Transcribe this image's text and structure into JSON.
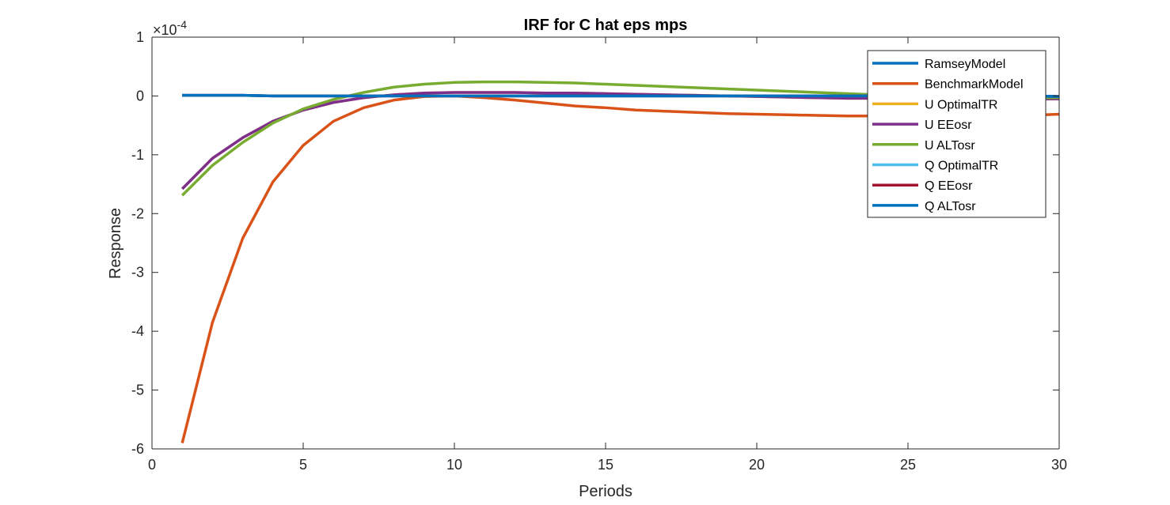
{
  "chart_data": {
    "type": "line",
    "title": "IRF for C hat eps mps",
    "xlabel": "Periods",
    "ylabel": "Response",
    "y_exponent_base": "×10",
    "y_exponent_power": "-4",
    "xlim": [
      0,
      30
    ],
    "ylim": [
      -6,
      1
    ],
    "xticks": [
      0,
      5,
      10,
      15,
      20,
      25,
      30
    ],
    "yticks": [
      1,
      0,
      -1,
      -2,
      -3,
      -4,
      -5,
      -6
    ],
    "legend_position": "top-right",
    "grid": false,
    "x": [
      1,
      2,
      3,
      4,
      5,
      6,
      7,
      8,
      9,
      10,
      11,
      12,
      13,
      14,
      15,
      16,
      17,
      18,
      19,
      20,
      21,
      22,
      23,
      24,
      25,
      26,
      27,
      28,
      29,
      30
    ],
    "series": [
      {
        "name": "RamseyModel",
        "color": "#0072BD",
        "values": [
          0.01,
          0.01,
          0.01,
          0.0,
          0.0,
          0.0,
          0.0,
          0.0,
          0.0,
          0.0,
          0.0,
          0.0,
          0.0,
          0.0,
          0.0,
          0.0,
          0.0,
          0.0,
          0.0,
          0.0,
          0.0,
          0.0,
          0.0,
          0.0,
          0.0,
          0.0,
          0.0,
          0.0,
          0.0,
          -0.01
        ]
      },
      {
        "name": "BenchmarkModel",
        "color": "#D95319",
        "values": [
          -5.9,
          -3.85,
          -2.42,
          -1.46,
          -0.84,
          -0.43,
          -0.2,
          -0.07,
          -0.01,
          0.0,
          -0.03,
          -0.07,
          -0.12,
          -0.17,
          -0.2,
          -0.24,
          -0.26,
          -0.28,
          -0.3,
          -0.31,
          -0.32,
          -0.33,
          -0.34,
          -0.34,
          -0.34,
          -0.34,
          -0.34,
          -0.34,
          -0.33,
          -0.31
        ]
      },
      {
        "name": "U OptimalTR",
        "color": "#EDB120",
        "values": [
          -1.58,
          -1.06,
          -0.71,
          -0.43,
          -0.24,
          -0.11,
          -0.03,
          0.02,
          0.05,
          0.06,
          0.06,
          0.06,
          0.05,
          0.05,
          0.04,
          0.03,
          0.02,
          0.01,
          0.0,
          -0.01,
          -0.02,
          -0.03,
          -0.04,
          -0.04,
          -0.05,
          -0.05,
          -0.05,
          -0.05,
          -0.05,
          -0.05
        ]
      },
      {
        "name": "U EEosr",
        "color": "#7E2F8E",
        "values": [
          -1.58,
          -1.06,
          -0.71,
          -0.43,
          -0.24,
          -0.11,
          -0.03,
          0.02,
          0.05,
          0.06,
          0.06,
          0.06,
          0.05,
          0.05,
          0.04,
          0.03,
          0.02,
          0.01,
          0.0,
          -0.01,
          -0.02,
          -0.03,
          -0.04,
          -0.04,
          -0.05,
          -0.05,
          -0.05,
          -0.05,
          -0.05,
          -0.05
        ]
      },
      {
        "name": "U ALTosr",
        "color": "#77AC30",
        "values": [
          -1.69,
          -1.18,
          -0.79,
          -0.46,
          -0.22,
          -0.06,
          0.06,
          0.15,
          0.2,
          0.23,
          0.24,
          0.24,
          0.23,
          0.22,
          0.2,
          0.18,
          0.16,
          0.14,
          0.12,
          0.1,
          0.08,
          0.06,
          0.04,
          0.02,
          0.01,
          -0.01,
          -0.02,
          -0.03,
          -0.03,
          -0.03
        ]
      },
      {
        "name": "Q OptimalTR",
        "color": "#4DBEEE",
        "values": [
          0.01,
          0.01,
          0.01,
          0.0,
          0.0,
          0.0,
          0.0,
          0.0,
          0.0,
          0.0,
          0.0,
          0.0,
          0.0,
          0.0,
          0.0,
          0.0,
          0.0,
          0.0,
          0.0,
          0.0,
          0.0,
          0.0,
          0.0,
          0.0,
          0.0,
          0.0,
          0.0,
          0.0,
          0.0,
          -0.01
        ]
      },
      {
        "name": "Q EEosr",
        "color": "#A2142F",
        "values": [
          0.01,
          0.01,
          0.01,
          0.0,
          0.0,
          0.0,
          0.0,
          0.0,
          0.0,
          0.0,
          0.0,
          0.0,
          0.0,
          0.0,
          0.0,
          0.0,
          0.0,
          0.0,
          0.0,
          0.0,
          0.0,
          0.0,
          0.0,
          0.0,
          0.0,
          0.0,
          0.0,
          0.0,
          0.0,
          -0.01
        ]
      },
      {
        "name": "Q ALTosr",
        "color": "#0072BD",
        "values": [
          0.01,
          0.01,
          0.01,
          0.0,
          0.0,
          0.0,
          0.0,
          0.0,
          0.0,
          0.0,
          0.0,
          0.0,
          0.0,
          0.0,
          0.0,
          0.0,
          0.0,
          0.0,
          0.0,
          0.0,
          0.0,
          0.0,
          0.0,
          0.0,
          0.0,
          0.0,
          0.0,
          0.0,
          0.0,
          -0.01
        ]
      }
    ]
  }
}
